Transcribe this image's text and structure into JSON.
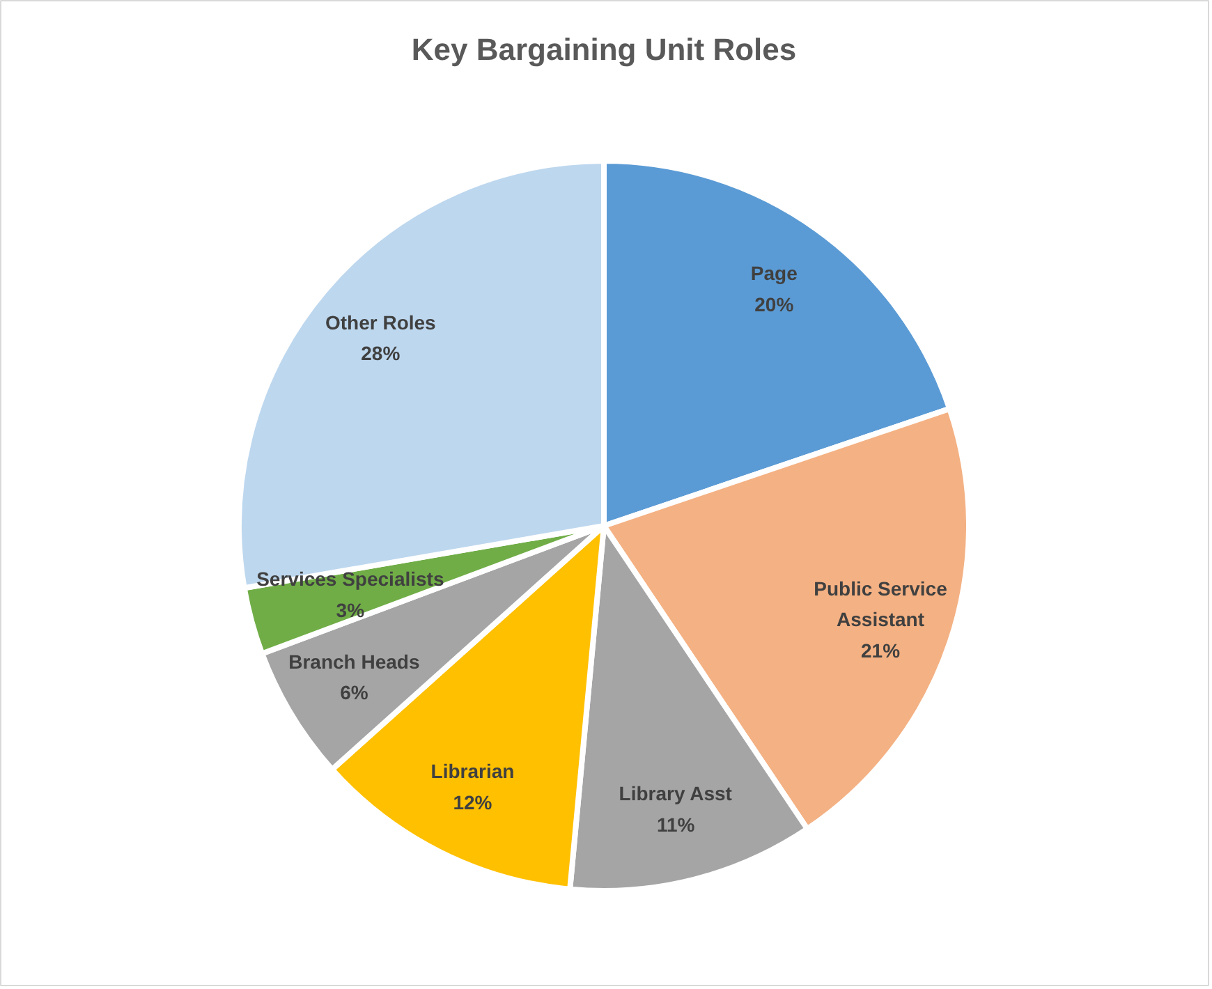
{
  "chart_data": {
    "type": "pie",
    "title": "Key Bargaining Unit Roles",
    "categories": [
      "Page",
      "Public Service Assistant",
      "Library Asst",
      "Librarian",
      "Branch Heads",
      "Services Specialists",
      "Other Roles"
    ],
    "values": [
      20,
      21,
      11,
      12,
      6,
      3,
      28
    ],
    "colors": [
      "#5b9bd5",
      "#f4b183",
      "#a5a5a5",
      "#ffc000",
      "#a5a5a5",
      "#70ad47",
      "#bdd7ee"
    ],
    "value_labels": [
      "20%",
      "21%",
      "11%",
      "12%",
      "6%",
      "3%",
      "28%"
    ]
  }
}
